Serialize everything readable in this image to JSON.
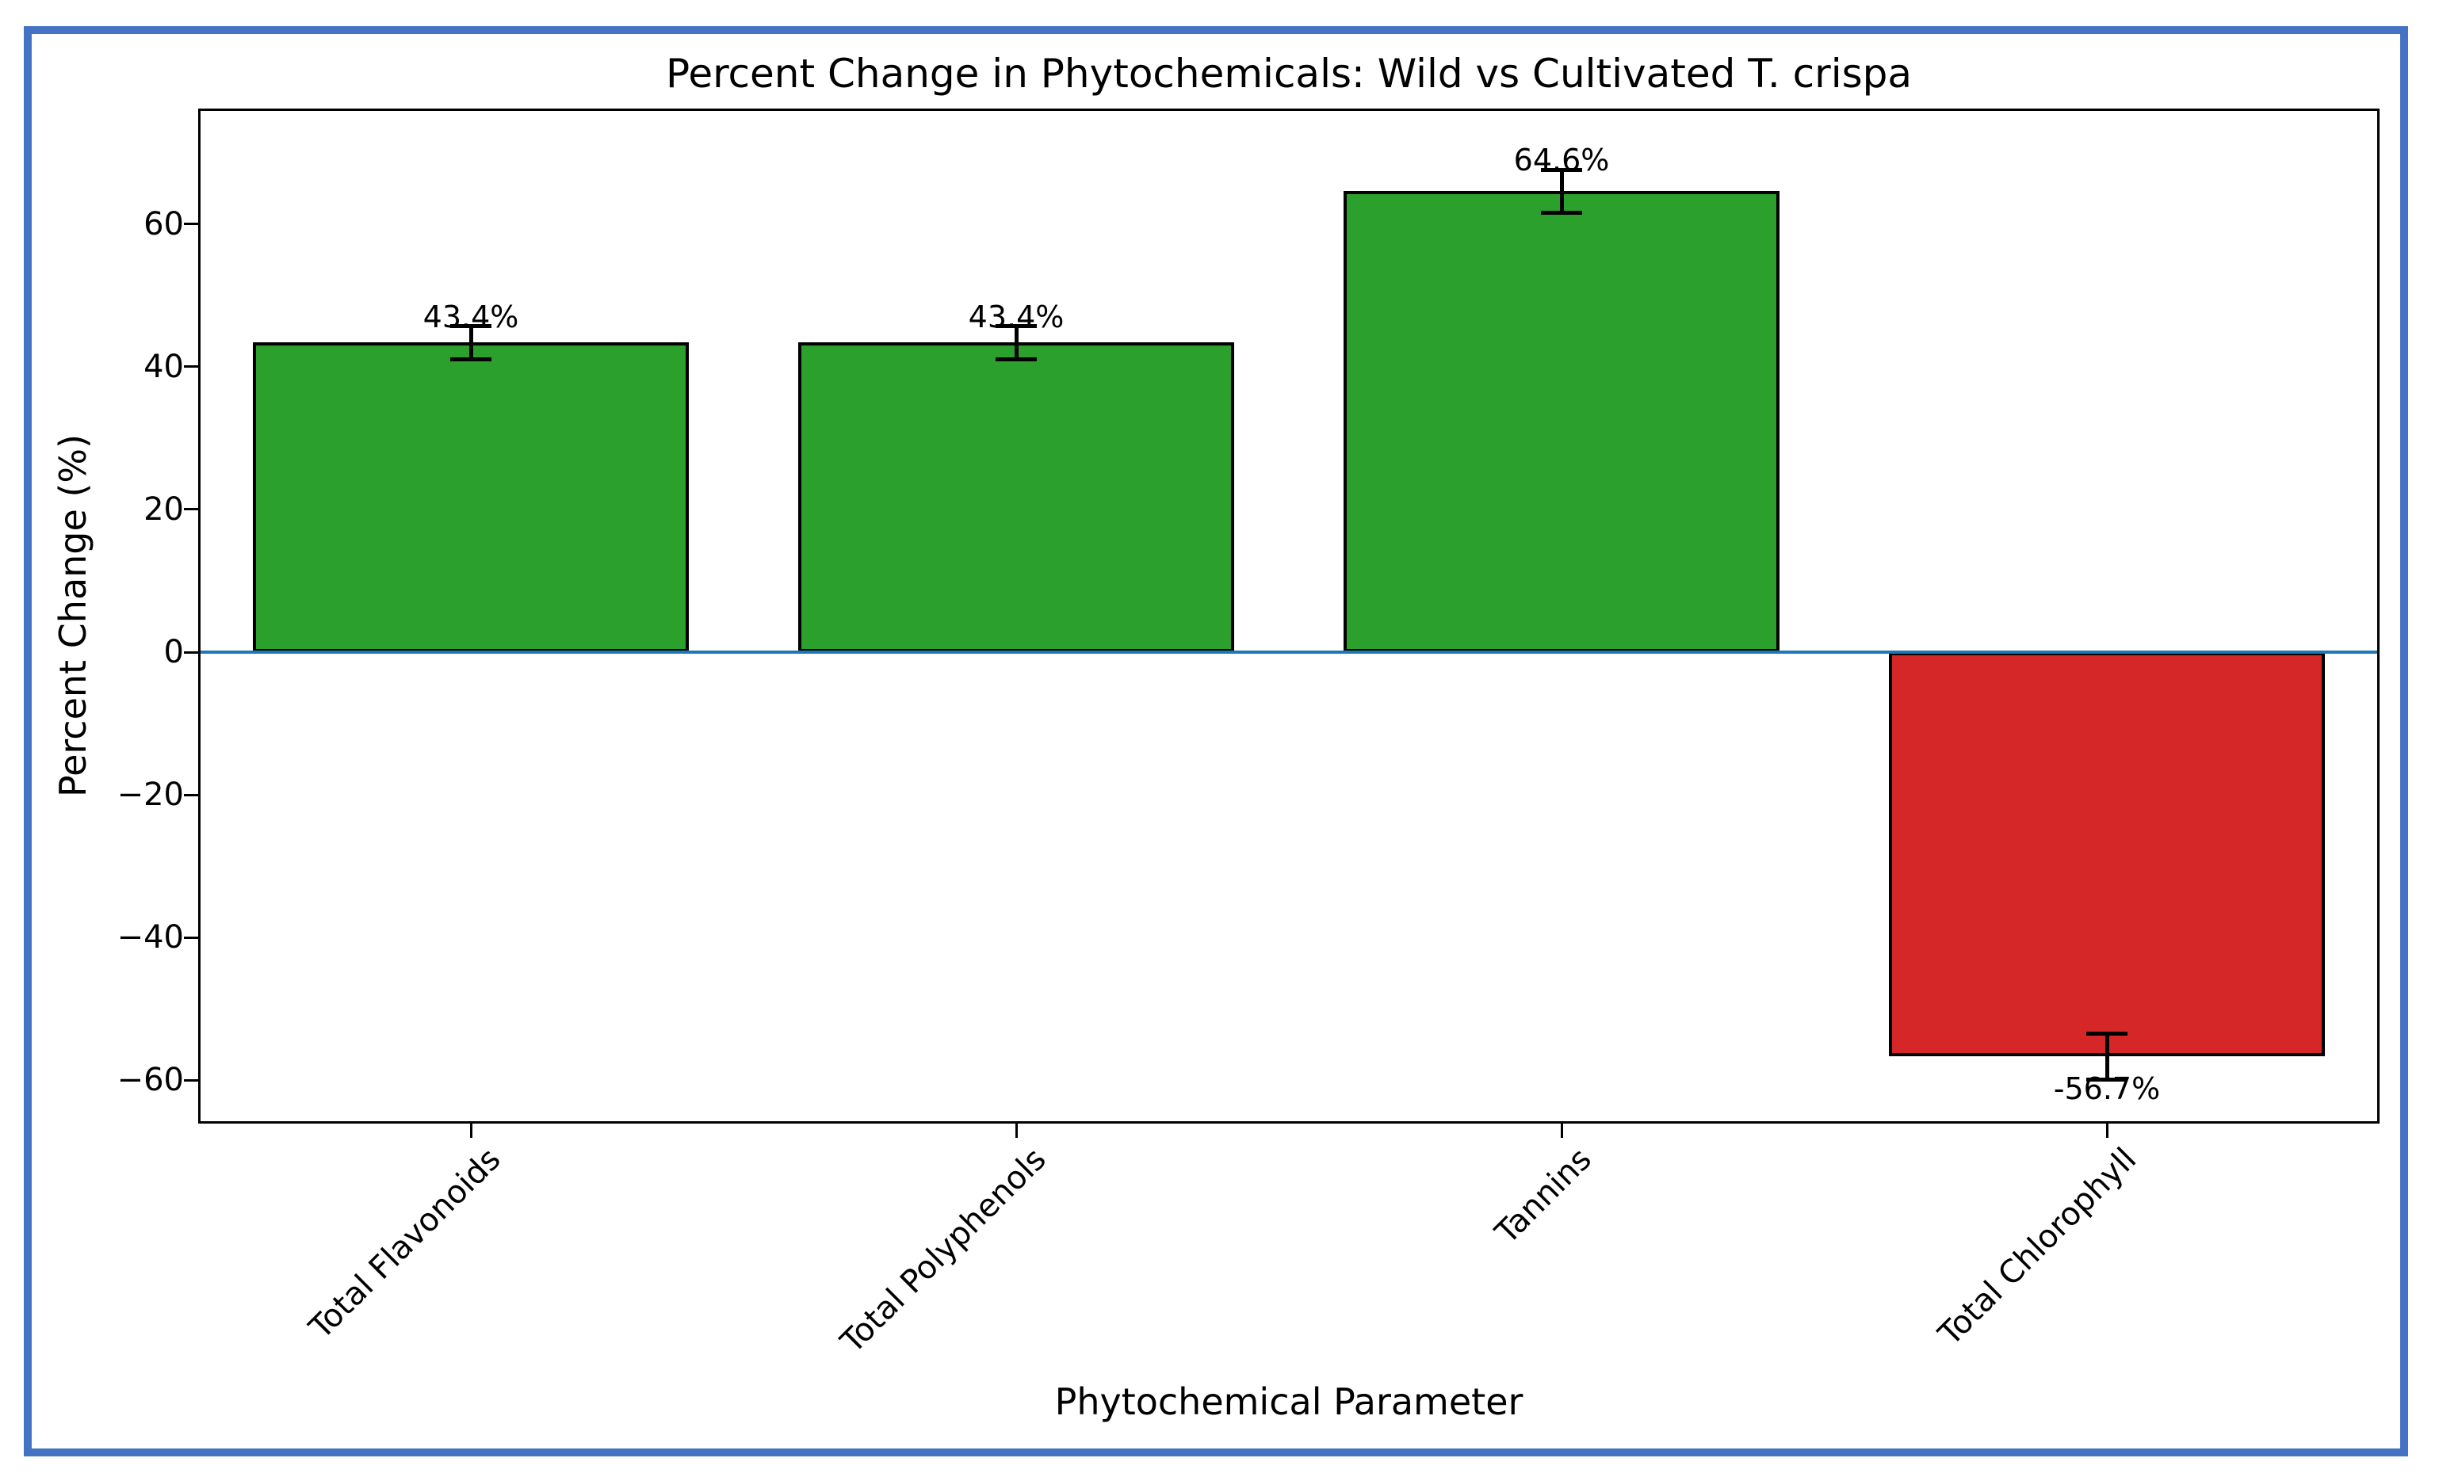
{
  "window": {
    "background": "#ffffff",
    "border_color": "#4472C4"
  },
  "chart_data": {
    "type": "bar",
    "title": "Percent Change in Phytochemicals: Wild vs Cultivated T. crispa",
    "xlabel": "Phytochemical Parameter",
    "ylabel": "Percent Change (%)",
    "categories": [
      "Total Flavonoids",
      "Total Polyphenols",
      "Tannins",
      "Total Chlorophyll"
    ],
    "values": [
      43.4,
      43.4,
      64.6,
      -56.7
    ],
    "value_labels": [
      "43.4%",
      "43.4%",
      "64.6%",
      "-56.7%"
    ],
    "error_bars": [
      2.3,
      2.3,
      3.0,
      3.2
    ],
    "bar_colors": [
      "#2ca02c",
      "#2ca02c",
      "#2ca02c",
      "#d62728"
    ],
    "bar_edge_color": "#000000",
    "zero_line_color": "#1f77b4",
    "axis_color": "#000000",
    "ylim": [
      -66.1,
      76.2
    ],
    "yticks": {
      "values": [
        60,
        40,
        20,
        0,
        -20,
        -40,
        -60
      ],
      "labels": [
        "60",
        "40",
        "20",
        "0",
        "−20",
        "−40",
        "−60"
      ]
    },
    "bar_width_fraction": 0.8,
    "x_tick_rotation_deg": 45,
    "grid": false,
    "legend": "none"
  }
}
